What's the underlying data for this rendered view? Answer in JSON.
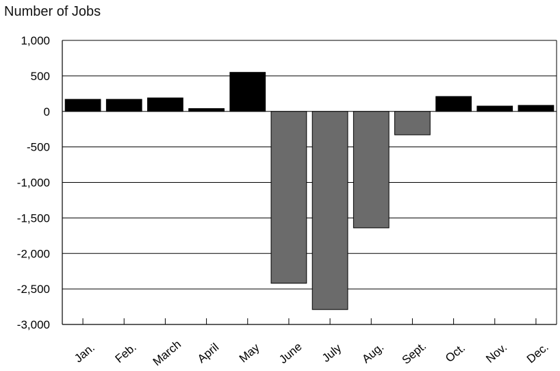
{
  "chart_data": {
    "type": "bar",
    "title": "",
    "xlabel": "",
    "ylabel": "Number of Jobs",
    "ylim": [
      -3000,
      1000
    ],
    "yticks": [
      1000,
      500,
      0,
      -500,
      -1000,
      -1500,
      -2000,
      -2500,
      -3000
    ],
    "ytick_labels": [
      "1,000",
      "500",
      "0",
      "-500",
      "-1,000",
      "-1,500",
      "-2,000",
      "-2,500",
      "-3,000"
    ],
    "grid": true,
    "categories": [
      "Jan.",
      "Feb.",
      "March",
      "April",
      "May",
      "June",
      "July",
      "Aug.",
      "Sept.",
      "Oct.",
      "Nov.",
      "Dec."
    ],
    "values": [
      170,
      170,
      190,
      40,
      550,
      -2420,
      -2790,
      -1640,
      -330,
      210,
      75,
      85
    ],
    "colors": {
      "positive": "#000000",
      "negative": "#6b6b6b",
      "grid": "#000000"
    }
  }
}
